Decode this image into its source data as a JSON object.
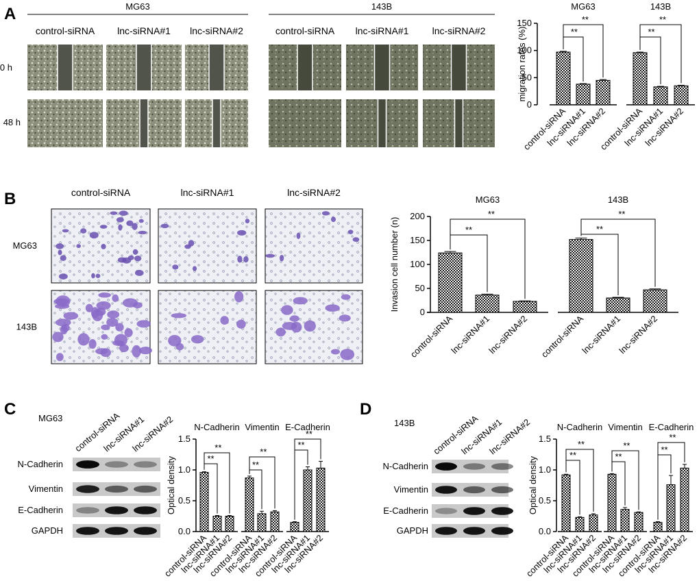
{
  "panels": {
    "A": "A",
    "B": "B",
    "C": "C",
    "D": "D"
  },
  "panelA": {
    "groups": [
      "MG63",
      "143B"
    ],
    "conditions": [
      "control-siRNA",
      "lnc-siRNA#1",
      "lnc-siRNA#2"
    ],
    "timepoints": [
      "0 h",
      "48 h"
    ]
  },
  "panelB": {
    "conditions": [
      "control-siRNA",
      "lnc-siRNA#1",
      "lnc-siRNA#2"
    ],
    "rows": [
      "MG63",
      "143B"
    ]
  },
  "panelC": {
    "cell_line": "MG63",
    "lanes": [
      "control-siRNA",
      "lnc-siRNA#1",
      "lnc-siRNA#2"
    ],
    "proteins": [
      "N-Cadherin",
      "Vimentin",
      "E-Cadherin",
      "GAPDH"
    ]
  },
  "panelD": {
    "cell_line": "143B",
    "lanes": [
      "control-siRNA",
      "lnc-siRNA#1",
      "lnc-siRNA#2"
    ],
    "proteins": [
      "N-Cadherin",
      "Vimentin",
      "E-Cadherin",
      "GAPDH"
    ]
  },
  "sig_mark": "**",
  "chart_data": [
    {
      "type": "bar",
      "panel": "A",
      "ylabel": "migration rates (%)",
      "ylim": [
        0,
        150
      ],
      "yticks": [
        0,
        50,
        100,
        150
      ],
      "categories": [
        "control-siRNA",
        "lnc-siRNA#1",
        "lnc-siRNA#2",
        "control-siRNA",
        "lnc-siRNA#1",
        "lnc-siRNA#2"
      ],
      "group_labels": [
        "MG63",
        "143B"
      ],
      "values": [
        97,
        38,
        45,
        96,
        33,
        35
      ],
      "errors": [
        1.5,
        1,
        1.5,
        1,
        1,
        1
      ],
      "significance": [
        "**",
        "**",
        "**",
        "**"
      ]
    },
    {
      "type": "bar",
      "panel": "B",
      "ylabel": "Invasion cell number (n)",
      "ylim": [
        0,
        200
      ],
      "yticks": [
        0,
        50,
        100,
        150,
        200
      ],
      "categories": [
        "control-siRNA",
        "lnc-siRNA#1",
        "lnc-siRNA#2",
        "control-siRNA",
        "lnc-siRNA#1",
        "lnc-siRNA#2"
      ],
      "group_labels": [
        "MG63",
        "143B"
      ],
      "values": [
        124,
        36,
        23,
        152,
        30,
        47
      ],
      "errors": [
        3,
        2,
        1,
        3,
        1.5,
        2
      ],
      "significance": [
        "**",
        "**",
        "**",
        "**"
      ]
    },
    {
      "type": "bar",
      "panel": "C",
      "ylabel": "Optical density",
      "ylim": [
        0,
        1.5
      ],
      "yticks": [
        "0.0",
        "0.5",
        "1.0",
        "1.5"
      ],
      "categories": [
        "control-siRNA",
        "lnc-siRNA#1",
        "lnc-siRNA#2",
        "control-siRNA",
        "lnc-siRNA#1",
        "lnc-siRNA#2",
        "control-siRNA",
        "lnc-siRNA#1",
        "lnc-siRNA#2"
      ],
      "group_labels": [
        "N-Cadherin",
        "Vimentin",
        "E-Cadherin"
      ],
      "values": [
        0.96,
        0.25,
        0.25,
        0.87,
        0.29,
        0.32,
        0.15,
        1.0,
        1.03
      ],
      "errors": [
        0.01,
        0.01,
        0.01,
        0.03,
        0.04,
        0.02,
        0.01,
        0.05,
        0.11
      ],
      "significance": [
        "**",
        "**",
        "**",
        "**",
        "**",
        "**"
      ]
    },
    {
      "type": "bar",
      "panel": "D",
      "ylabel": "Optical density",
      "ylim": [
        0,
        1.5
      ],
      "yticks": [
        "0.0",
        "0.5",
        "1.0",
        "1.5"
      ],
      "categories": [
        "control-siRNA",
        "lnc-siRNA#1",
        "lnc-siRNA#2",
        "control-siRNA",
        "lnc-siRNA#1",
        "lnc-siRNA#2",
        "control-siRNA",
        "lnc-siRNA#1",
        "lnc-siRNA#2"
      ],
      "group_labels": [
        "N-Cadherin",
        "Vimentin",
        "E-Cadherin"
      ],
      "values": [
        0.92,
        0.23,
        0.27,
        0.93,
        0.36,
        0.31,
        0.15,
        0.76,
        1.03
      ],
      "errors": [
        0.01,
        0.01,
        0.02,
        0.01,
        0.03,
        0.01,
        0.01,
        0.15,
        0.06
      ],
      "significance": [
        "**",
        "**",
        "**",
        "**",
        "**",
        "**"
      ]
    }
  ]
}
